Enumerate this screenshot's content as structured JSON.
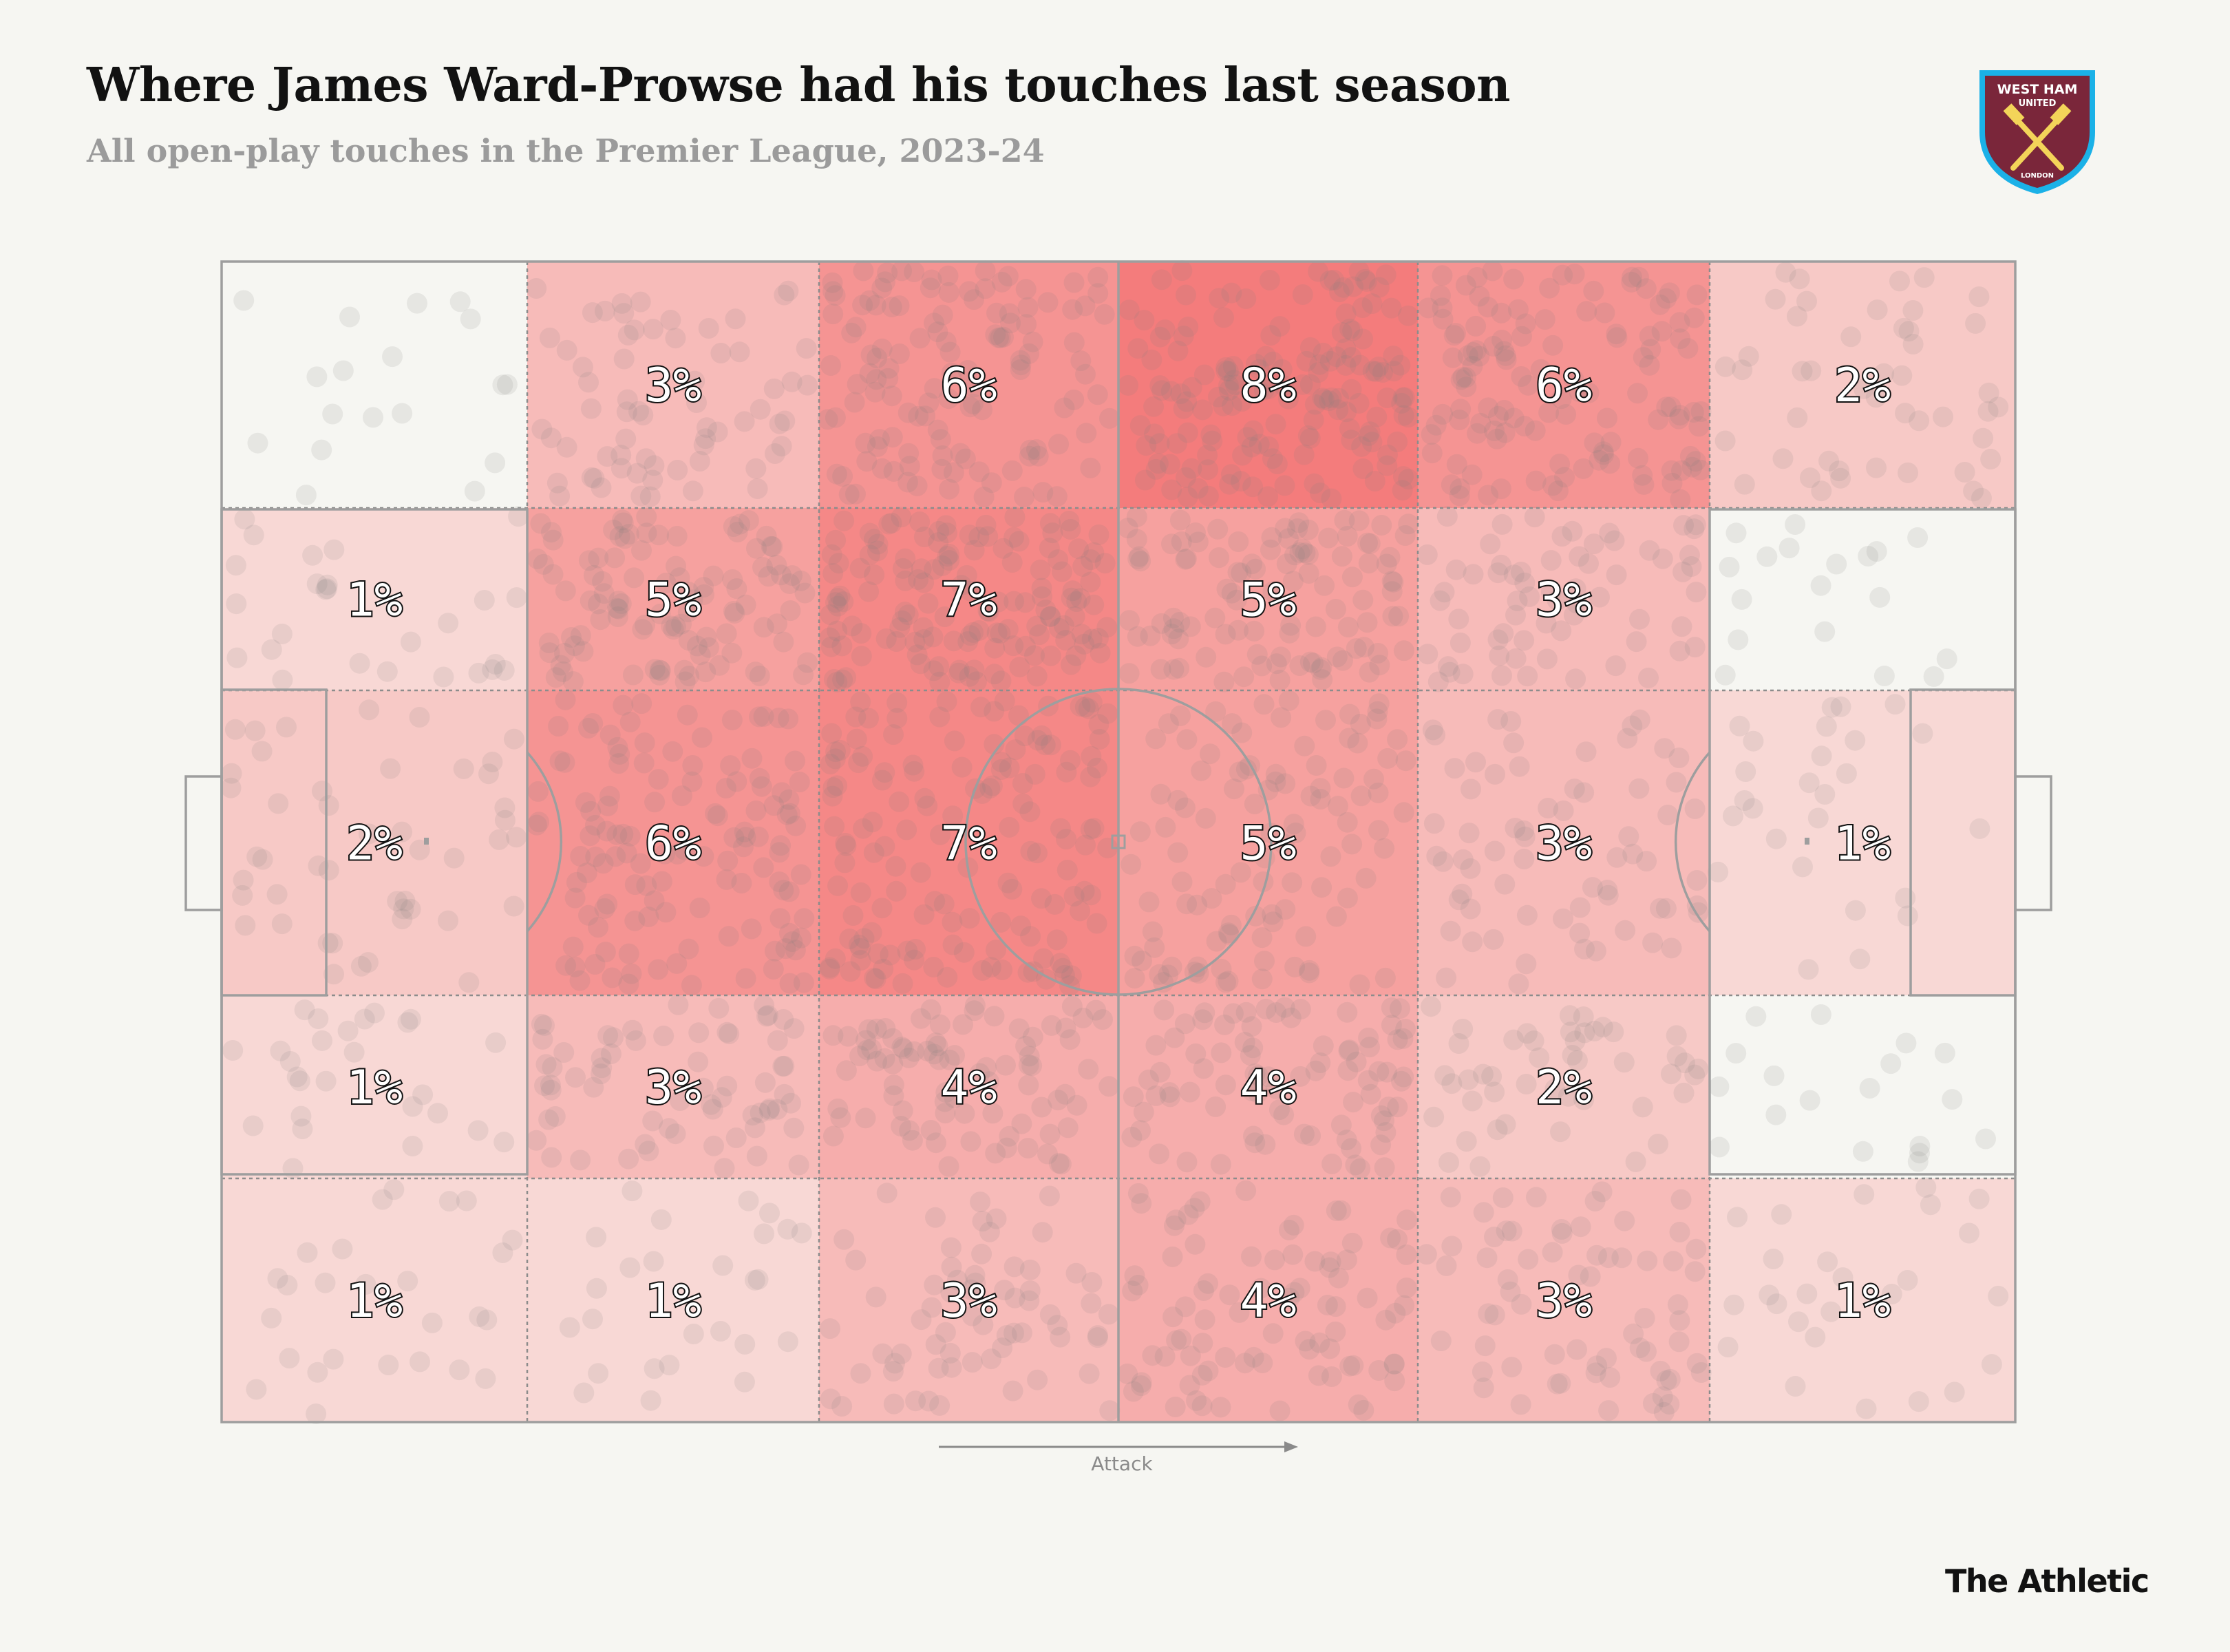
{
  "header": {
    "title": "Where James Ward-Prowse had his touches last season",
    "subtitle": "All open-play touches in the Premier League, 2023-24"
  },
  "crest": {
    "line1": "WEST HAM",
    "line2": "UNITED",
    "line3": "LONDON",
    "color_claret": "#7a263a",
    "color_blue": "#1bb1e7",
    "color_gold": "#f3d459"
  },
  "attack_label": "Attack",
  "brand": "The Athletic",
  "chart_data": {
    "type": "heatmap",
    "direction": "left-to-right",
    "colors": {
      "low": "#f9ebe7",
      "high": "#f47c7c",
      "text": "#121212",
      "dots": "#7a7a7a"
    },
    "rows": [
      {
        "id": "top-wing",
        "values": [
          null,
          3,
          6,
          8,
          6,
          2
        ],
        "labels": [
          "",
          "3%",
          "6%",
          "8%",
          "6%",
          "2%"
        ]
      },
      {
        "id": "top-halfspace",
        "values": [
          1,
          5,
          7,
          5,
          3,
          null
        ],
        "labels": [
          "1%",
          "5%",
          "7%",
          "5%",
          "3%",
          ""
        ]
      },
      {
        "id": "centre",
        "values": [
          2,
          6,
          7,
          5,
          3,
          1
        ],
        "labels": [
          "2%",
          "6%",
          "7%",
          "5%",
          "3%",
          "1%"
        ]
      },
      {
        "id": "bot-halfspace",
        "values": [
          1,
          3,
          4,
          4,
          2,
          null
        ],
        "labels": [
          "1%",
          "3%",
          "4%",
          "4%",
          "2%",
          ""
        ]
      },
      {
        "id": "bot-wing",
        "values": [
          1,
          1,
          3,
          4,
          3,
          1
        ],
        "labels": [
          "1%",
          "1%",
          "3%",
          "4%",
          "3%",
          "1%"
        ]
      }
    ]
  }
}
